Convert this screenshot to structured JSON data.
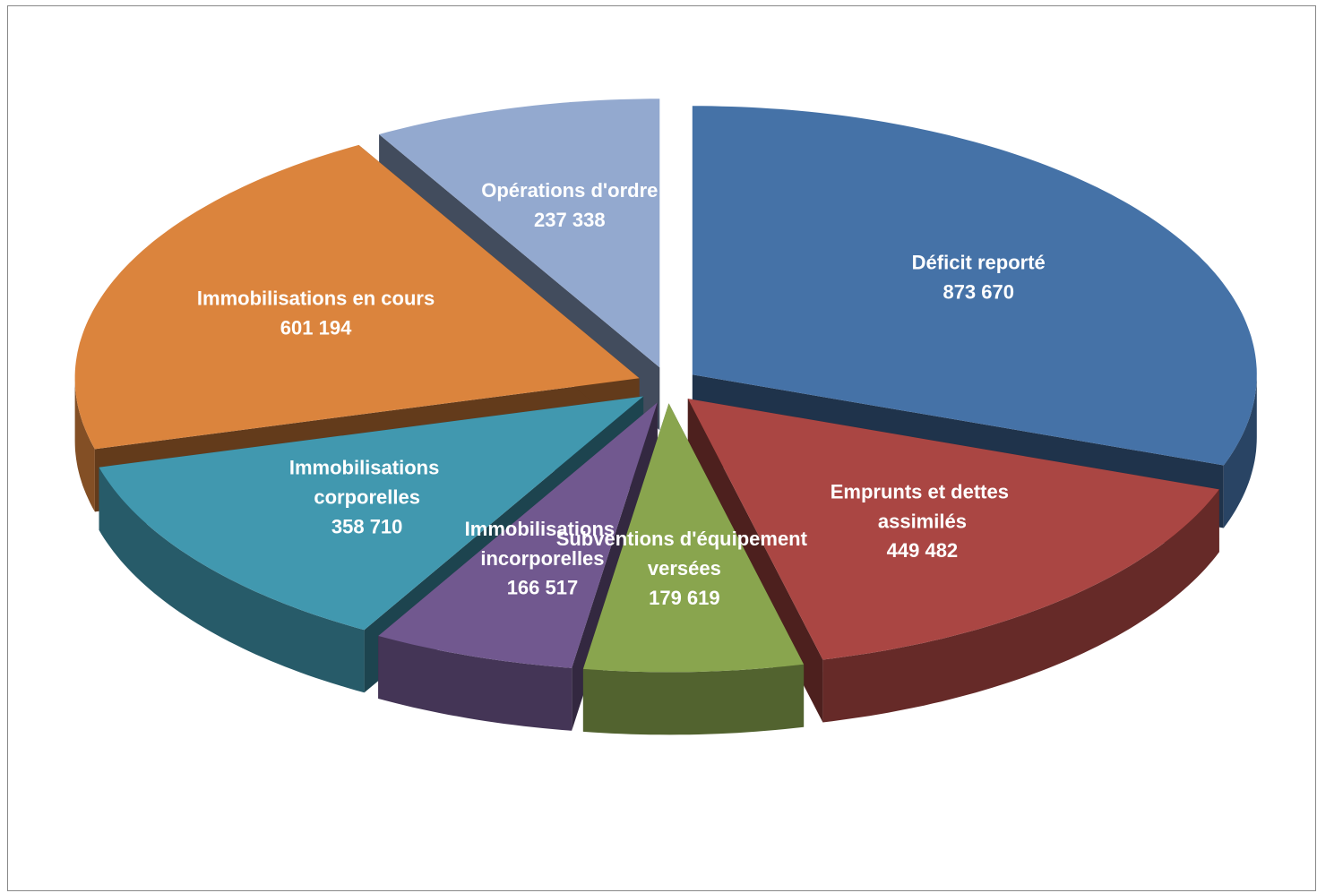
{
  "chart_data": {
    "type": "pie",
    "categories": [
      "Déficit reporté",
      "Emprunts et dettes assimilés",
      "Subventions d'équipement versées",
      "Immobilisations incorporelles",
      "Immobilisations corporelles",
      "Immobilisations en cours",
      "Opérations d'ordre"
    ],
    "values": [
      873670,
      449482,
      179619,
      166517,
      358710,
      601194,
      237338
    ],
    "value_labels": [
      "873 670",
      "449 482",
      "179 619",
      "166 517",
      "358 710",
      "601 194",
      "237 338"
    ],
    "colors": [
      "#4572a7",
      "#aa4643",
      "#89a54e",
      "#71588f",
      "#4198af",
      "#db843d",
      "#93a9cf"
    ]
  }
}
